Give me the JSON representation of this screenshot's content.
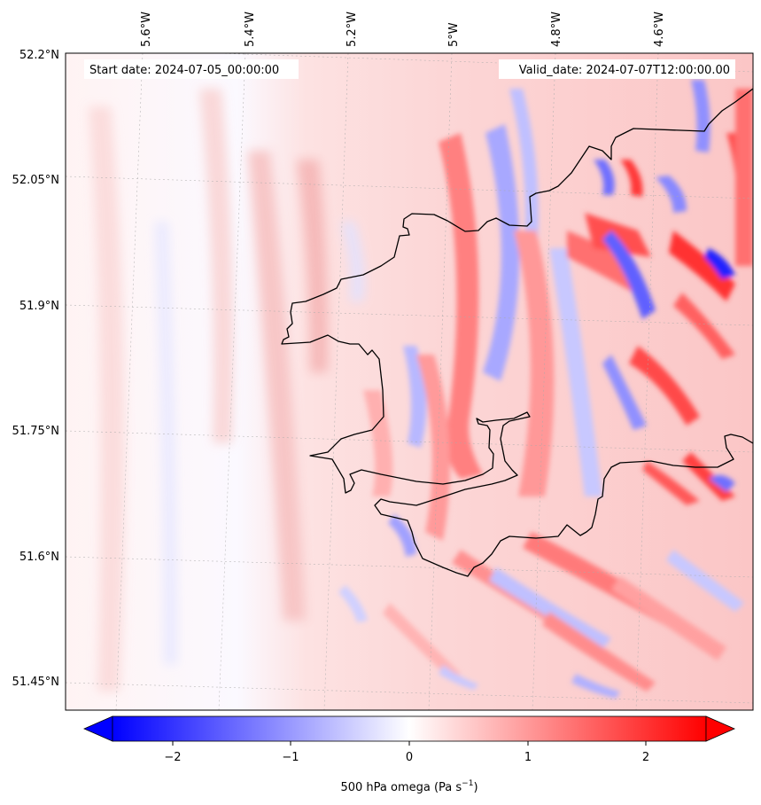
{
  "header": {
    "start_date": "Start date: 2024-07-05_00:00:00",
    "valid_date": "Valid_date: 2024-07-07T12:00:00.00"
  },
  "map": {
    "projection": "Lambert conformal (gridlines tilted)",
    "extent_deg": {
      "lon_min": -5.73,
      "lon_max": -4.45,
      "lat_min": 51.42,
      "lat_max": 52.2
    },
    "gridlines": "on",
    "gridline_style": "dotted grey",
    "coastline_color": "#000000",
    "lon_ticks": [
      {
        "lon": -5.6,
        "label": "5.6°W"
      },
      {
        "lon": -5.4,
        "label": "5.4°W"
      },
      {
        "lon": -5.2,
        "label": "5.2°W"
      },
      {
        "lon": -5.0,
        "label": "5°W"
      },
      {
        "lon": -4.8,
        "label": "4.8°W"
      },
      {
        "lon": -4.6,
        "label": "4.6°W"
      }
    ],
    "lat_ticks": [
      {
        "lat": 52.2,
        "label": "52.2°N"
      },
      {
        "lat": 52.05,
        "label": "52.05°N"
      },
      {
        "lat": 51.9,
        "label": "51.9°N"
      },
      {
        "lat": 51.75,
        "label": "51.75°N"
      },
      {
        "lat": 51.6,
        "label": "51.6°N"
      },
      {
        "lat": 51.45,
        "label": "51.45°N"
      }
    ],
    "field_description": "500 hPa vertical velocity with banded red/blue wave patterns over and east of Pembrokeshire coast"
  },
  "colorbar": {
    "label_prefix": "500 hPa omega (Pa s",
    "label_exponent": "−1",
    "label_suffix": ")",
    "range": [
      -2.5,
      2.5
    ],
    "extend": "both",
    "colormap": "bwr",
    "color_low": "#0000ff",
    "color_mid": "#ffffff",
    "color_high": "#ff0000",
    "ticks": [
      {
        "value": -2,
        "label": "−2"
      },
      {
        "value": -1,
        "label": "−1"
      },
      {
        "value": 0,
        "label": "0"
      },
      {
        "value": 1,
        "label": "1"
      },
      {
        "value": 2,
        "label": "2"
      }
    ]
  }
}
